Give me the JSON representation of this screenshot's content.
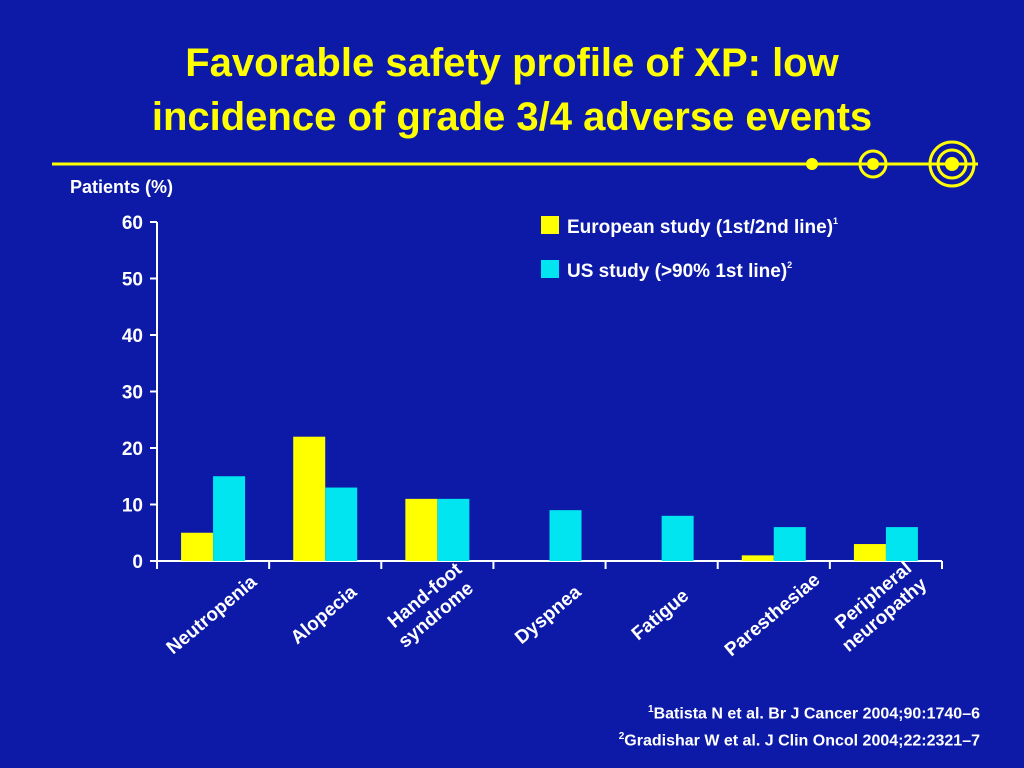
{
  "slide": {
    "title_line1": "Favorable safety profile of XP: low",
    "title_line2": "incidence of grade 3/4 adverse events",
    "accent_color": "#ffff00",
    "background_color": "#0d1aa8"
  },
  "chart_data": {
    "type": "bar",
    "ylabel": "Patients (%)",
    "xlabel": "",
    "title": "",
    "ylim": [
      0,
      60
    ],
    "yticks": [
      0,
      10,
      20,
      30,
      40,
      50,
      60
    ],
    "grid": false,
    "legend_position": "top-right",
    "categories": [
      [
        "Neutropenia"
      ],
      [
        "Alopecia"
      ],
      [
        "Hand-foot",
        "syndrome"
      ],
      [
        "Dyspnea"
      ],
      [
        "Fatigue"
      ],
      [
        "Paresthesiae"
      ],
      [
        "Peripheral",
        "neuropathy"
      ]
    ],
    "series": [
      {
        "name": "European study (1st/2nd line)",
        "superscript": "1",
        "color": "#ffff00",
        "values": [
          5,
          22,
          11,
          0,
          0,
          1,
          3
        ]
      },
      {
        "name": "US study (>90% 1st line)",
        "superscript": "2",
        "color": "#00e5f0",
        "values": [
          15,
          13,
          11,
          9,
          8,
          6,
          6
        ]
      }
    ]
  },
  "references": [
    {
      "number": "1",
      "text": "Batista N et al. Br J Cancer 2004;90:1740–6"
    },
    {
      "number": "2",
      "text": "Gradishar W et al. J Clin Oncol 2004;22:2321–7"
    }
  ]
}
